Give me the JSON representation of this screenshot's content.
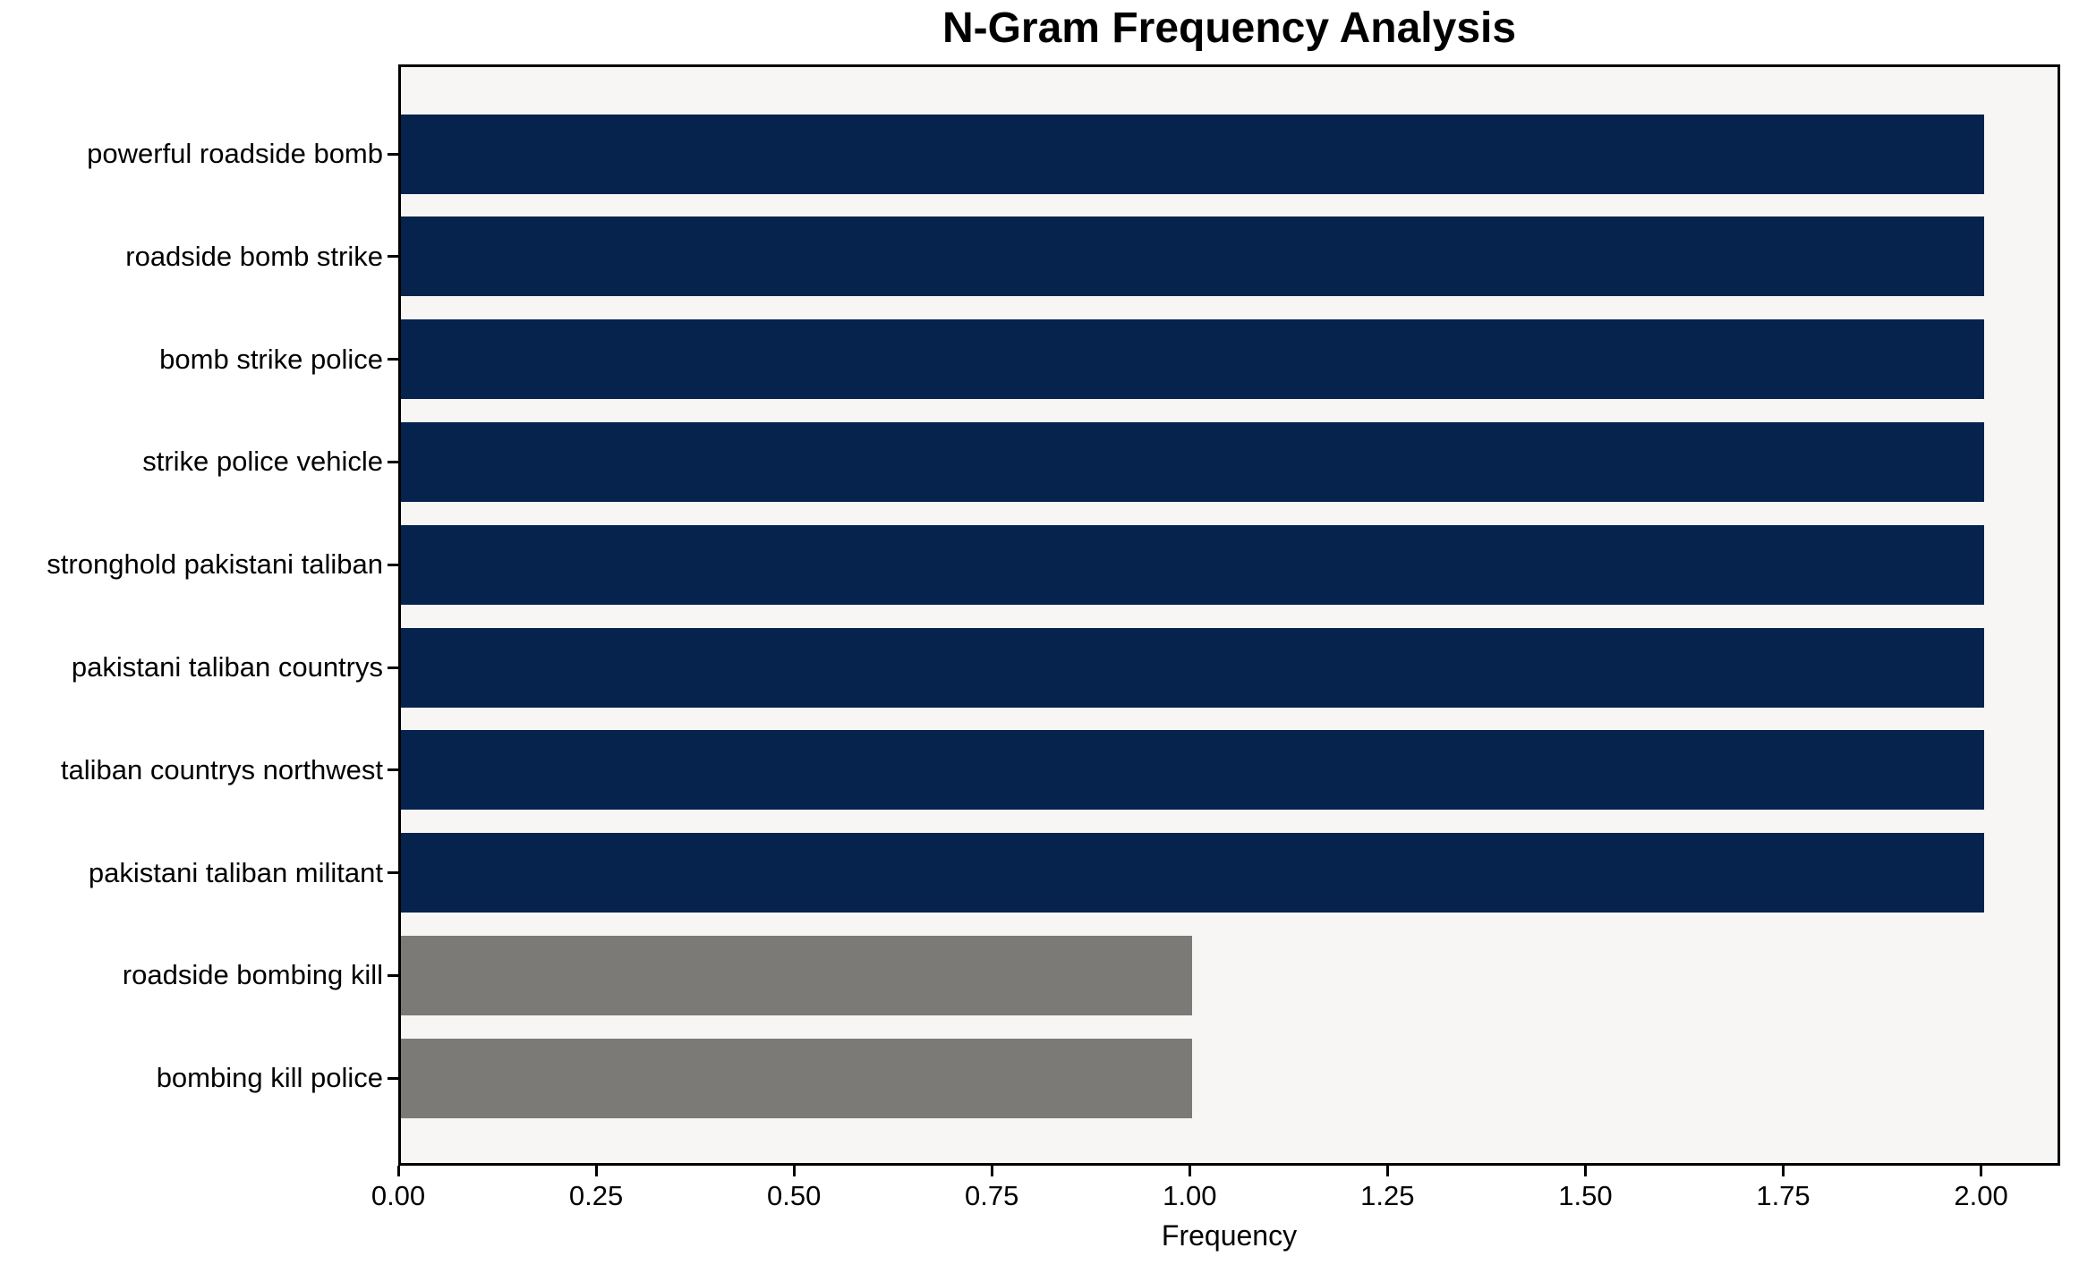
{
  "chart_data": {
    "type": "bar",
    "orientation": "horizontal",
    "title": "N-Gram Frequency Analysis",
    "xlabel": "Frequency",
    "ylabel": "",
    "xlim": [
      0,
      2.1
    ],
    "x_ticks": [
      "0.00",
      "0.25",
      "0.50",
      "0.75",
      "1.00",
      "1.25",
      "1.50",
      "1.75",
      "2.00"
    ],
    "grid": false,
    "legend": false,
    "categories": [
      "powerful roadside bomb",
      "roadside bomb strike",
      "bomb strike police",
      "strike police vehicle",
      "stronghold pakistani taliban",
      "pakistani taliban countrys",
      "taliban countrys northwest",
      "pakistani taliban militant",
      "roadside bombing kill",
      "bombing kill police"
    ],
    "values": [
      2,
      2,
      2,
      2,
      2,
      2,
      2,
      2,
      1,
      1
    ],
    "bar_colors": [
      "#05234c",
      "#05234c",
      "#05234c",
      "#05234c",
      "#05234c",
      "#05234c",
      "#05234c",
      "#05234c",
      "#7b7a76",
      "#7b7a76"
    ],
    "colors": {
      "bar_navy": "#05234c",
      "bar_gray": "#7b7a76",
      "plot_background": "#f7f6f5",
      "figure_background": "#ffffff",
      "axis": "#000000",
      "text": "#000000"
    }
  }
}
